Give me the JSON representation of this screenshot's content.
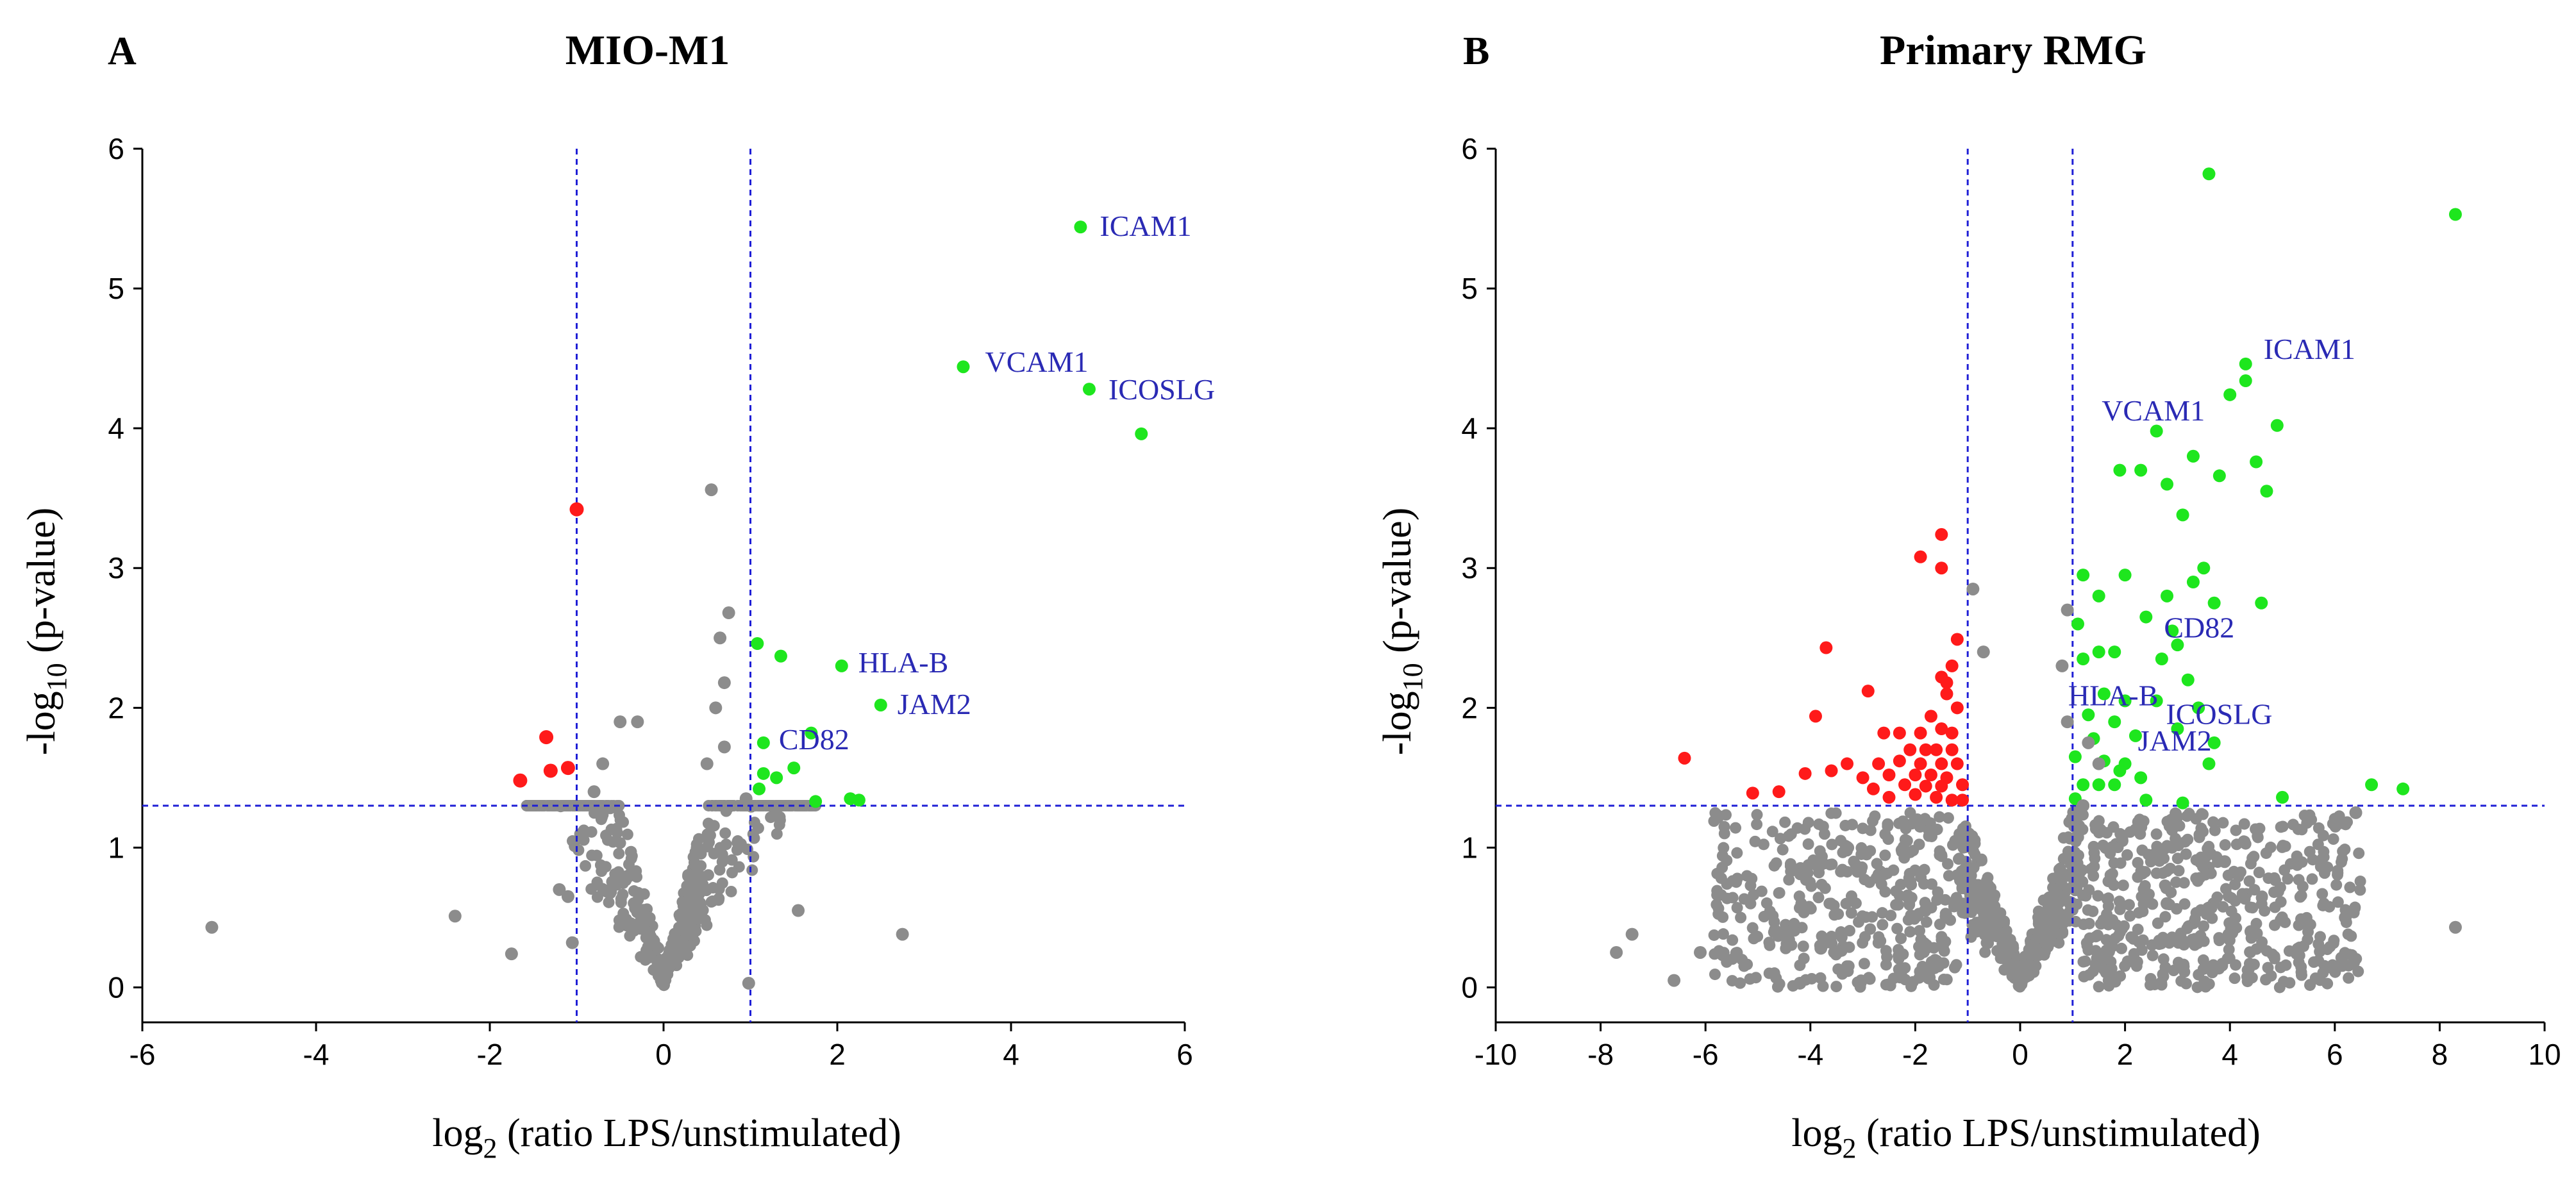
{
  "figure": {
    "colors": {
      "nonsig": "#8c8c8c",
      "down": "#ff1a1a",
      "up": "#1ee61e",
      "threshold": "#1f1fd6",
      "label": "#2a2ab4",
      "axis": "#000000"
    }
  },
  "chart_data": [
    {
      "panel": "A",
      "title": "MIO-M1",
      "type": "scatter",
      "xlabel": "log2 (ratio LPS/unstimulated)",
      "ylabel": "-log10 (p-value)",
      "xlim": [
        -6,
        6
      ],
      "ylim": [
        -0.25,
        6
      ],
      "xticks": [
        -6,
        -4,
        -2,
        0,
        2,
        4,
        6
      ],
      "yticks": [
        0,
        1,
        2,
        3,
        4,
        5,
        6
      ],
      "thresholds": {
        "fc_low": -1,
        "fc_high": 1,
        "p": 1.3
      },
      "ylabel_parts": {
        "pre": "-log",
        "sub": "10",
        "post": " (p-value)"
      },
      "xlabel_parts": {
        "pre": "log",
        "sub": "2",
        "post": " (ratio LPS/unstimulated)"
      },
      "series": [
        {
          "name": "up",
          "color": "#1ee61e",
          "points": [
            [
              4.8,
              5.44
            ],
            [
              3.45,
              4.44
            ],
            [
              4.9,
              4.28
            ],
            [
              5.5,
              3.96
            ],
            [
              1.08,
              2.46
            ],
            [
              1.35,
              2.37
            ],
            [
              2.05,
              2.3
            ],
            [
              2.5,
              2.02
            ],
            [
              1.15,
              1.75
            ],
            [
              1.15,
              1.53
            ],
            [
              1.3,
              1.5
            ],
            [
              1.5,
              1.57
            ],
            [
              1.1,
              1.42
            ],
            [
              1.75,
              1.33
            ],
            [
              2.15,
              1.35
            ],
            [
              2.25,
              1.34
            ],
            [
              1.7,
              1.82
            ]
          ]
        },
        {
          "name": "down",
          "color": "#ff1a1a",
          "points": [
            [
              -1.0,
              3.42
            ],
            [
              -1.35,
              1.79
            ],
            [
              -1.1,
              1.57
            ],
            [
              -1.3,
              1.55
            ],
            [
              -1.65,
              1.48
            ]
          ]
        },
        {
          "name": "nonsig",
          "color": "#8c8c8c",
          "points": [
            [
              -5.2,
              0.43
            ],
            [
              -2.4,
              0.51
            ],
            [
              -1.75,
              0.24
            ],
            [
              -1.05,
              0.32
            ],
            [
              -1.2,
              0.7
            ],
            [
              -1.1,
              0.65
            ],
            [
              0.55,
              3.56
            ],
            [
              0.75,
              2.68
            ],
            [
              0.65,
              2.5
            ],
            [
              0.7,
              2.18
            ],
            [
              0.6,
              2.0
            ],
            [
              0.7,
              1.72
            ],
            [
              -0.5,
              1.9
            ],
            [
              -0.3,
              1.9
            ],
            [
              -0.7,
              1.6
            ],
            [
              0.5,
              1.6
            ],
            [
              -0.8,
              1.4
            ],
            [
              0.95,
              1.35
            ],
            [
              2.75,
              0.38
            ],
            [
              0.98,
              0.03
            ],
            [
              1.55,
              0.55
            ]
          ]
        }
      ],
      "annotations": [
        {
          "label": "ICAM1",
          "x": 4.8,
          "y": 5.44
        },
        {
          "label": "VCAM1",
          "x": 3.45,
          "y": 4.44
        },
        {
          "label": "ICOSLG",
          "x": 4.9,
          "y": 4.28
        },
        {
          "label": "HLA-B",
          "x": 2.05,
          "y": 2.3
        },
        {
          "label": "JAM2",
          "x": 2.5,
          "y": 2.02
        },
        {
          "label": "CD82",
          "x": 1.15,
          "y": 1.75
        }
      ],
      "bulk_nonsig": {
        "count": 600,
        "seed": 11,
        "x_range": [
          -1.5,
          2.0
        ],
        "y_max": 1.3
      }
    },
    {
      "panel": "B",
      "title": "Primary RMG",
      "type": "scatter",
      "xlabel": "log2 (ratio LPS/unstimulated)",
      "ylabel": "-log10 (p-value)",
      "xlim": [
        -10,
        10
      ],
      "ylim": [
        -0.25,
        6
      ],
      "xticks": [
        -10,
        -8,
        -6,
        -4,
        -2,
        0,
        2,
        4,
        6,
        8,
        10
      ],
      "yticks": [
        0,
        1,
        2,
        3,
        4,
        5,
        6
      ],
      "thresholds": {
        "fc_low": -1,
        "fc_high": 1,
        "p": 1.3
      },
      "ylabel_parts": {
        "pre": "-log",
        "sub": "10",
        "post": " (p-value)"
      },
      "xlabel_parts": {
        "pre": "log",
        "sub": "2",
        "post": " (ratio LPS/unstimulated)"
      },
      "series": [
        {
          "name": "up",
          "color": "#1ee61e",
          "points": [
            [
              3.6,
              5.82
            ],
            [
              8.3,
              5.53
            ],
            [
              4.3,
              4.46
            ],
            [
              4.3,
              4.34
            ],
            [
              4.0,
              4.24
            ],
            [
              4.9,
              4.02
            ],
            [
              2.6,
              3.98
            ],
            [
              3.3,
              3.8
            ],
            [
              4.5,
              3.76
            ],
            [
              1.9,
              3.7
            ],
            [
              2.3,
              3.7
            ],
            [
              2.8,
              3.6
            ],
            [
              3.8,
              3.66
            ],
            [
              4.7,
              3.55
            ],
            [
              3.1,
              3.38
            ],
            [
              1.2,
              2.95
            ],
            [
              2.0,
              2.95
            ],
            [
              3.5,
              3.0
            ],
            [
              3.3,
              2.9
            ],
            [
              2.8,
              2.8
            ],
            [
              3.7,
              2.75
            ],
            [
              1.5,
              2.8
            ],
            [
              4.6,
              2.75
            ],
            [
              2.4,
              2.65
            ],
            [
              1.1,
              2.6
            ],
            [
              2.9,
              2.55
            ],
            [
              3.0,
              2.45
            ],
            [
              2.7,
              2.35
            ],
            [
              1.2,
              2.35
            ],
            [
              1.5,
              2.4
            ],
            [
              1.8,
              2.4
            ],
            [
              3.2,
              2.2
            ],
            [
              1.6,
              2.1
            ],
            [
              2.0,
              2.05
            ],
            [
              2.6,
              2.05
            ],
            [
              3.4,
              2.0
            ],
            [
              1.3,
              1.95
            ],
            [
              1.8,
              1.9
            ],
            [
              3.0,
              1.85
            ],
            [
              2.2,
              1.8
            ],
            [
              1.4,
              1.78
            ],
            [
              3.7,
              1.75
            ],
            [
              1.05,
              1.65
            ],
            [
              1.6,
              1.62
            ],
            [
              2.0,
              1.6
            ],
            [
              1.9,
              1.55
            ],
            [
              3.6,
              1.6
            ],
            [
              1.2,
              1.45
            ],
            [
              1.5,
              1.45
            ],
            [
              1.8,
              1.45
            ],
            [
              2.3,
              1.5
            ],
            [
              6.7,
              1.45
            ],
            [
              7.3,
              1.42
            ],
            [
              1.05,
              1.35
            ],
            [
              2.4,
              1.34
            ],
            [
              3.1,
              1.32
            ],
            [
              5.0,
              1.36
            ]
          ]
        },
        {
          "name": "down",
          "color": "#ff1a1a",
          "points": [
            [
              -1.5,
              3.24
            ],
            [
              -1.9,
              3.08
            ],
            [
              -1.5,
              3.0
            ],
            [
              -1.2,
              2.49
            ],
            [
              -3.7,
              2.43
            ],
            [
              -1.3,
              2.3
            ],
            [
              -1.5,
              2.22
            ],
            [
              -1.4,
              2.18
            ],
            [
              -2.9,
              2.12
            ],
            [
              -1.4,
              2.1
            ],
            [
              -3.9,
              1.94
            ],
            [
              -1.7,
              1.94
            ],
            [
              -1.2,
              2.0
            ],
            [
              -2.6,
              1.82
            ],
            [
              -2.3,
              1.82
            ],
            [
              -1.9,
              1.82
            ],
            [
              -1.5,
              1.85
            ],
            [
              -1.3,
              1.82
            ],
            [
              -6.4,
              1.64
            ],
            [
              -3.3,
              1.6
            ],
            [
              -2.1,
              1.7
            ],
            [
              -1.8,
              1.7
            ],
            [
              -1.6,
              1.7
            ],
            [
              -1.3,
              1.7
            ],
            [
              -4.1,
              1.53
            ],
            [
              -3.6,
              1.55
            ],
            [
              -2.7,
              1.6
            ],
            [
              -2.3,
              1.62
            ],
            [
              -1.9,
              1.6
            ],
            [
              -1.5,
              1.6
            ],
            [
              -1.2,
              1.6
            ],
            [
              -3.0,
              1.5
            ],
            [
              -2.5,
              1.52
            ],
            [
              -2.0,
              1.52
            ],
            [
              -1.7,
              1.52
            ],
            [
              -1.4,
              1.5
            ],
            [
              -5.1,
              1.39
            ],
            [
              -4.6,
              1.4
            ],
            [
              -2.8,
              1.42
            ],
            [
              -2.2,
              1.45
            ],
            [
              -1.8,
              1.44
            ],
            [
              -1.5,
              1.44
            ],
            [
              -1.1,
              1.45
            ],
            [
              -2.5,
              1.36
            ],
            [
              -2.0,
              1.38
            ],
            [
              -1.6,
              1.36
            ],
            [
              -1.3,
              1.34
            ],
            [
              -1.1,
              1.34
            ]
          ]
        },
        {
          "name": "nonsig",
          "color": "#8c8c8c",
          "points": [
            [
              8.3,
              0.43
            ],
            [
              -7.7,
              0.25
            ],
            [
              -7.4,
              0.38
            ],
            [
              -6.6,
              0.05
            ],
            [
              -6.1,
              0.25
            ],
            [
              -4.2,
              0.03
            ],
            [
              -3.8,
              0.28
            ],
            [
              1.3,
              1.75
            ],
            [
              1.5,
              1.6
            ],
            [
              0.9,
              1.9
            ],
            [
              -0.9,
              2.85
            ],
            [
              0.9,
              2.7
            ],
            [
              -0.7,
              2.4
            ],
            [
              0.8,
              2.3
            ],
            [
              1.2,
              1.3
            ],
            [
              2.8,
              0.6
            ],
            [
              3.9,
              0.9
            ],
            [
              4.4,
              0.4
            ],
            [
              6.2,
              0.5
            ],
            [
              6.4,
              1.25
            ]
          ]
        }
      ],
      "annotations": [
        {
          "label": "ICAM1",
          "x": 4.3,
          "y": 4.46
        },
        {
          "label": "VCAM1",
          "x": 4.0,
          "y": 4.24
        },
        {
          "label": "CD82",
          "x": 2.4,
          "y": 2.65
        },
        {
          "label": "HLA-B",
          "x": 1.6,
          "y": 2.1
        },
        {
          "label": "ICOSLG",
          "x": 3.0,
          "y": 2.05
        },
        {
          "label": "JAM2",
          "x": 2.0,
          "y": 1.95
        }
      ],
      "bulk_nonsig": {
        "count": 1400,
        "seed": 23,
        "x_range": [
          -6.5,
          6.5
        ],
        "y_max": 1.3
      }
    }
  ]
}
